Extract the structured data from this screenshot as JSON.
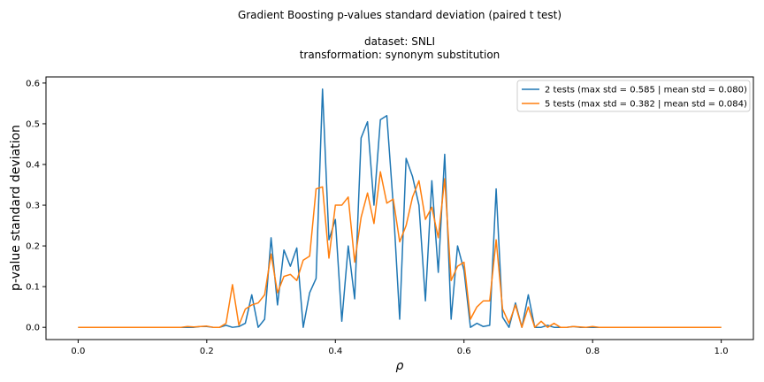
{
  "chart_data": {
    "type": "line",
    "title": "Gradient Boosting p-values standard deviation (paired t test)",
    "subtitle_lines": [
      "dataset: SNLI",
      "transformation: synonym substitution"
    ],
    "xlabel": "ρ",
    "ylabel": "p-value standard deviation",
    "xlim": [
      -0.05,
      1.05
    ],
    "ylim": [
      -0.03,
      0.615
    ],
    "x_ticks": [
      0.0,
      0.2,
      0.4,
      0.6,
      0.8,
      1.0
    ],
    "x_tick_labels": [
      "0.0",
      "0.2",
      "0.4",
      "0.6",
      "0.8",
      "1.0"
    ],
    "y_ticks": [
      0.0,
      0.1,
      0.2,
      0.3,
      0.4,
      0.5,
      0.6
    ],
    "y_tick_labels": [
      "0.0",
      "0.1",
      "0.2",
      "0.3",
      "0.4",
      "0.5",
      "0.6"
    ],
    "grid": false,
    "legend_position": "top-right",
    "x": [
      0.0,
      0.01,
      0.02,
      0.03,
      0.04,
      0.05,
      0.06,
      0.07,
      0.08,
      0.09,
      0.1,
      0.11,
      0.12,
      0.13,
      0.14,
      0.15,
      0.16,
      0.17,
      0.18,
      0.19,
      0.2,
      0.21,
      0.22,
      0.23,
      0.24,
      0.25,
      0.26,
      0.27,
      0.28,
      0.29,
      0.3,
      0.31,
      0.32,
      0.33,
      0.34,
      0.35,
      0.36,
      0.37,
      0.38,
      0.39,
      0.4,
      0.41,
      0.42,
      0.43,
      0.44,
      0.45,
      0.46,
      0.47,
      0.48,
      0.49,
      0.5,
      0.51,
      0.52,
      0.53,
      0.54,
      0.55,
      0.56,
      0.57,
      0.58,
      0.59,
      0.6,
      0.61,
      0.62,
      0.63,
      0.64,
      0.65,
      0.66,
      0.67,
      0.68,
      0.69,
      0.7,
      0.71,
      0.72,
      0.73,
      0.74,
      0.75,
      0.76,
      0.77,
      0.78,
      0.79,
      0.8,
      0.81,
      0.82,
      0.83,
      0.84,
      0.85,
      0.86,
      0.87,
      0.88,
      0.89,
      0.9,
      0.91,
      0.92,
      0.93,
      0.94,
      0.95,
      0.96,
      0.97,
      0.98,
      0.99,
      1.0
    ],
    "series": [
      {
        "name": "2 tests (max std = 0.585 | mean std = 0.080)",
        "color": "#1f77b4",
        "values": [
          0,
          0,
          0,
          0,
          0,
          0,
          0,
          0,
          0,
          0,
          0,
          0,
          0,
          0,
          0,
          0,
          0,
          0,
          0,
          0.002,
          0.002,
          0,
          0,
          0.005,
          0,
          0.002,
          0.01,
          0.08,
          0,
          0.02,
          0.22,
          0.055,
          0.19,
          0.15,
          0.195,
          0,
          0.085,
          0.12,
          0.585,
          0.215,
          0.265,
          0.015,
          0.2,
          0.07,
          0.465,
          0.505,
          0.3,
          0.51,
          0.52,
          0.3,
          0.02,
          0.415,
          0.37,
          0.3,
          0.065,
          0.36,
          0.135,
          0.425,
          0.02,
          0.2,
          0.14,
          0,
          0.01,
          0.002,
          0.005,
          0.34,
          0.025,
          0,
          0.06,
          0,
          0.08,
          0,
          0,
          0.005,
          0,
          0,
          0,
          0.002,
          0,
          0,
          0,
          0,
          0,
          0,
          0,
          0,
          0,
          0,
          0,
          0,
          0,
          0,
          0,
          0,
          0,
          0,
          0,
          0,
          0,
          0,
          0
        ]
      },
      {
        "name": "5 tests (max std = 0.382 | mean std = 0.084)",
        "color": "#ff7f0e",
        "values": [
          0,
          0,
          0,
          0,
          0,
          0,
          0,
          0,
          0,
          0,
          0,
          0,
          0,
          0,
          0,
          0,
          0,
          0.002,
          0.001,
          0.002,
          0.003,
          0,
          0,
          0.01,
          0.105,
          0.005,
          0.045,
          0.055,
          0.06,
          0.08,
          0.18,
          0.085,
          0.125,
          0.13,
          0.115,
          0.165,
          0.175,
          0.34,
          0.345,
          0.17,
          0.3,
          0.3,
          0.32,
          0.16,
          0.27,
          0.33,
          0.255,
          0.382,
          0.305,
          0.315,
          0.21,
          0.25,
          0.32,
          0.36,
          0.265,
          0.295,
          0.22,
          0.365,
          0.115,
          0.15,
          0.16,
          0.02,
          0.05,
          0.065,
          0.065,
          0.215,
          0.045,
          0.01,
          0.055,
          0,
          0.05,
          0,
          0.015,
          0,
          0.01,
          0,
          0,
          0.002,
          0.001,
          0,
          0.002,
          0,
          0,
          0,
          0,
          0,
          0,
          0,
          0,
          0,
          0,
          0,
          0,
          0,
          0,
          0,
          0,
          0,
          0,
          0,
          0
        ]
      }
    ]
  }
}
